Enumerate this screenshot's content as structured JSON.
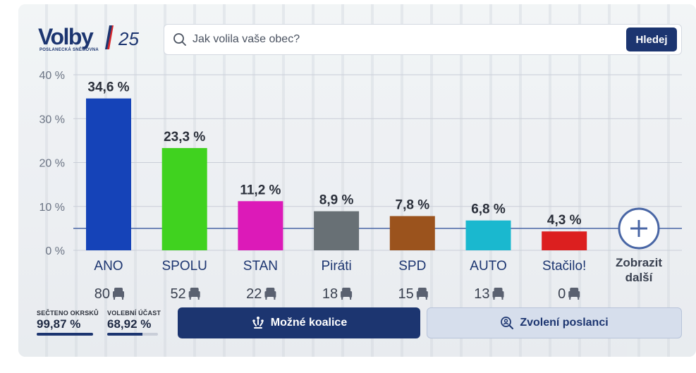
{
  "brand": {
    "word": "Volby",
    "number": "25",
    "subtitle": "POSLANECKÁ SNĚMOVNA",
    "color": "#1c3570",
    "slash_colors": [
      "#1c3570",
      "#d7262b"
    ]
  },
  "search": {
    "placeholder": "Jak volila vaše obec?",
    "button_label": "Hledej"
  },
  "chart_data": {
    "type": "bar",
    "title": "",
    "xlabel": "",
    "ylabel": "",
    "ylim": [
      0,
      40
    ],
    "yticks": [
      0,
      10,
      20,
      30,
      40
    ],
    "ytick_labels": [
      "0 %",
      "10 %",
      "20 %",
      "30 %",
      "40 %"
    ],
    "threshold": 5,
    "grid": true,
    "categories": [
      "ANO",
      "SPOLU",
      "STAN",
      "Piráti",
      "SPD",
      "AUTO",
      "Stačilo!"
    ],
    "values": [
      34.6,
      23.3,
      11.2,
      8.9,
      7.8,
      6.8,
      4.3
    ],
    "value_labels": [
      "34,6 %",
      "23,3 %",
      "11,2 %",
      "8,9 %",
      "7,8 %",
      "6,8 %",
      "4,3 %"
    ],
    "seats": [
      "80",
      "52",
      "22",
      "18",
      "15",
      "13",
      "0"
    ],
    "colors": [
      "#1543b8",
      "#40d21f",
      "#dc1ab8",
      "#687075",
      "#9b531d",
      "#1ab8cf",
      "#dc1f1f"
    ],
    "seat_icon": "armchair-icon"
  },
  "more": {
    "line1": "Zobrazit",
    "line2": "další",
    "icon": "plus-circle-icon"
  },
  "stats": {
    "counted": {
      "label": "SEČTENO OKRSKŮ",
      "value": "99,87 %",
      "fraction": 0.9987
    },
    "turnout": {
      "label": "VOLEBNÍ ÚČAST",
      "value": "68,92 %",
      "fraction": 0.6892
    }
  },
  "actions": {
    "coalitions": {
      "label": "Možné koalice",
      "icon": "coalition-icon"
    },
    "mps": {
      "label": "Zvolení poslanci",
      "icon": "person-search-icon"
    }
  }
}
